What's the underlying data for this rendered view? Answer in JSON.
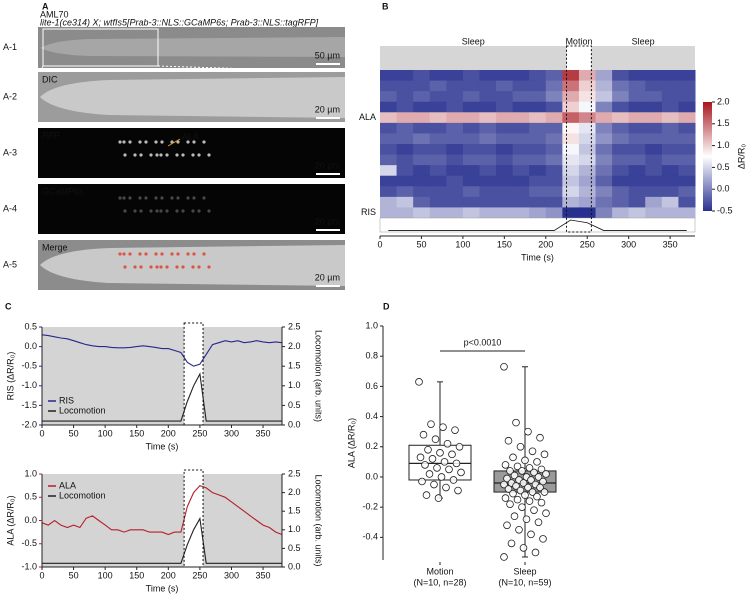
{
  "panel_labels": [
    "A",
    "B",
    "C",
    "D"
  ],
  "panel_a": {
    "strain": "AML70",
    "genotype": "lite-1(ce314) X; wtfIs5[Prab-3::NLS::GCaMP6s; Prab-3::NLS::tagRFP]",
    "rows": [
      {
        "id": "A-1",
        "scale_bar": "50 µm"
      },
      {
        "id": "A-2",
        "caption": "DIC",
        "scale_bar": "20 µm"
      },
      {
        "id": "A-3",
        "caption": "RFP",
        "scale_bar": "20 µm",
        "annotation": "ALA"
      },
      {
        "id": "A-4",
        "caption": "GCaMP6s",
        "scale_bar": "20 µm"
      },
      {
        "id": "A-5",
        "caption": "Merge",
        "scale_bar": "20 µm"
      }
    ]
  },
  "chart_data": [
    {
      "type": "heatmap",
      "state_labels": [
        "Sleep",
        "Motion",
        "Sleep"
      ],
      "motion_window": [
        225,
        255
      ],
      "bins": [
        0,
        20,
        40,
        60,
        80,
        100,
        120,
        140,
        160,
        180,
        200,
        220,
        240,
        260,
        280,
        300,
        320,
        340,
        360,
        380
      ],
      "rows": [
        {
          "name": null,
          "values": [
            -0.4,
            -0.4,
            -0.3,
            -0.4,
            -0.4,
            -0.3,
            -0.4,
            -0.4,
            -0.4,
            -0.3,
            -0.2,
            1.8,
            1.2,
            0.2,
            -0.3,
            -0.4,
            -0.4,
            -0.4,
            -0.4
          ]
        },
        {
          "name": null,
          "values": [
            -0.3,
            -0.3,
            -0.3,
            -0.2,
            -0.3,
            -0.3,
            -0.3,
            -0.2,
            -0.3,
            -0.3,
            -0.1,
            1.5,
            1.0,
            0.3,
            -0.1,
            -0.2,
            -0.3,
            -0.3,
            -0.3
          ]
        },
        {
          "name": null,
          "values": [
            -0.2,
            -0.3,
            -0.2,
            -0.3,
            -0.3,
            -0.2,
            -0.3,
            -0.3,
            -0.2,
            -0.2,
            0.0,
            1.2,
            0.9,
            0.4,
            0.0,
            -0.2,
            -0.2,
            -0.3,
            -0.3
          ]
        },
        {
          "name": null,
          "values": [
            -0.4,
            -0.3,
            -0.4,
            -0.4,
            -0.3,
            -0.4,
            -0.4,
            -0.3,
            -0.4,
            -0.4,
            -0.3,
            1.0,
            0.7,
            0.0,
            -0.3,
            -0.4,
            -0.4,
            -0.3,
            -0.4
          ]
        },
        {
          "name": "ALA",
          "values": [
            1.1,
            1.2,
            1.2,
            1.1,
            1.2,
            1.2,
            1.1,
            1.2,
            1.2,
            1.1,
            1.2,
            1.6,
            1.4,
            1.2,
            1.1,
            1.2,
            1.2,
            1.1,
            1.2
          ]
        },
        {
          "name": null,
          "values": [
            -0.3,
            -0.2,
            -0.3,
            -0.3,
            -0.2,
            -0.3,
            -0.2,
            -0.3,
            -0.3,
            -0.2,
            -0.2,
            0.8,
            0.6,
            0.0,
            -0.2,
            -0.3,
            -0.3,
            -0.2,
            -0.3
          ]
        },
        {
          "name": null,
          "values": [
            -0.2,
            -0.2,
            -0.1,
            -0.2,
            -0.2,
            -0.2,
            -0.1,
            -0.2,
            -0.2,
            -0.2,
            -0.1,
            0.9,
            0.5,
            0.1,
            -0.1,
            -0.2,
            -0.2,
            -0.2,
            -0.2
          ]
        },
        {
          "name": null,
          "values": [
            -0.3,
            -0.4,
            -0.3,
            -0.3,
            -0.4,
            -0.3,
            -0.3,
            -0.4,
            -0.3,
            -0.3,
            -0.2,
            0.7,
            0.4,
            -0.1,
            -0.3,
            -0.3,
            -0.4,
            -0.3,
            -0.3
          ]
        },
        {
          "name": null,
          "values": [
            -0.2,
            -0.3,
            -0.2,
            -0.2,
            -0.3,
            -0.2,
            -0.2,
            -0.3,
            -0.2,
            -0.2,
            -0.1,
            0.6,
            0.5,
            0.0,
            -0.2,
            -0.2,
            -0.3,
            -0.2,
            -0.2
          ]
        },
        {
          "name": null,
          "values": [
            0.5,
            -0.3,
            -0.4,
            -0.3,
            -0.4,
            -0.4,
            -0.3,
            -0.4,
            -0.3,
            -0.4,
            -0.3,
            0.5,
            0.3,
            -0.1,
            -0.3,
            -0.4,
            -0.3,
            -0.4,
            -0.3
          ]
        },
        {
          "name": null,
          "values": [
            -0.4,
            -0.4,
            -0.4,
            -0.4,
            -0.3,
            -0.4,
            -0.4,
            -0.4,
            -0.4,
            -0.3,
            -0.3,
            0.4,
            0.2,
            -0.2,
            -0.4,
            -0.4,
            -0.4,
            -0.4,
            -0.4
          ]
        },
        {
          "name": null,
          "values": [
            -0.3,
            -0.2,
            -0.3,
            -0.3,
            -0.3,
            -0.2,
            -0.3,
            -0.3,
            -0.3,
            -0.2,
            -0.2,
            0.5,
            0.3,
            0.0,
            -0.2,
            -0.3,
            -0.3,
            -0.3,
            -0.2
          ]
        },
        {
          "name": null,
          "values": [
            0.3,
            0.4,
            -0.2,
            -0.3,
            -0.3,
            -0.3,
            -0.3,
            -0.3,
            -0.3,
            -0.3,
            -0.3,
            0.3,
            0.2,
            -0.1,
            -0.2,
            -0.3,
            0.2,
            0.4,
            -0.3
          ]
        },
        {
          "name": "RIS",
          "values": [
            0.3,
            0.3,
            0.4,
            0.3,
            0.3,
            0.4,
            0.3,
            0.3,
            0.3,
            0.2,
            0.1,
            -0.5,
            -0.5,
            0.0,
            0.3,
            0.4,
            0.3,
            0.3,
            0.3
          ]
        }
      ],
      "locomotion": [
        0.05,
        0.05,
        0.05,
        0.05,
        0.05,
        0.05,
        0.05,
        0.05,
        0.05,
        0.05,
        0.05,
        1.2,
        0.9,
        0.05,
        0.05,
        0.05,
        0.05,
        0.05,
        0.05
      ],
      "xlim": [
        0,
        380
      ],
      "xticks": [
        0,
        50,
        100,
        150,
        200,
        250,
        300,
        350
      ],
      "xlabel": "Time (s)",
      "clim": [
        -0.5,
        2.0
      ],
      "cticks": [
        -0.5,
        {
          "value": 0,
          "label": "0.0"
        },
        0.5,
        {
          "value": 1,
          "label": "1.0"
        },
        1.5,
        {
          "value": 2,
          "label": "2.0"
        }
      ],
      "colorbar_label": "ΔR/R₀",
      "colormap": [
        "#28308f",
        "#ffffff",
        "#a8161f"
      ]
    },
    {
      "type": "line",
      "x": [
        0,
        10,
        20,
        30,
        40,
        50,
        60,
        70,
        80,
        90,
        100,
        110,
        120,
        130,
        140,
        150,
        160,
        170,
        180,
        190,
        200,
        210,
        220,
        230,
        240,
        250,
        260,
        270,
        280,
        290,
        300,
        310,
        320,
        330,
        340,
        350,
        360,
        370,
        380
      ],
      "series": [
        {
          "name": "RIS",
          "color": "#27278c",
          "values": [
            0.3,
            0.28,
            0.25,
            0.22,
            0.2,
            0.15,
            0.1,
            0.05,
            0.02,
            0.0,
            0.0,
            -0.02,
            -0.03,
            -0.03,
            -0.02,
            0.0,
            0.02,
            0.0,
            -0.02,
            -0.05,
            -0.05,
            -0.1,
            -0.15,
            -0.4,
            -0.5,
            -0.45,
            -0.2,
            0.05,
            0.1,
            0.15,
            0.12,
            0.15,
            0.1,
            0.12,
            0.15,
            0.12,
            0.1,
            0.12,
            0.1
          ]
        },
        {
          "name": "Locomotion",
          "color": "#222222",
          "axis": "y2",
          "values": [
            0.1,
            0.1,
            0.1,
            0.1,
            0.1,
            0.1,
            0.1,
            0.1,
            0.1,
            0.1,
            0.1,
            0.1,
            0.1,
            0.1,
            0.1,
            0.1,
            0.1,
            0.1,
            0.1,
            0.1,
            0.1,
            0.1,
            0.1,
            0.6,
            1.0,
            1.3,
            0.1,
            0.1,
            0.1,
            0.1,
            0.1,
            0.1,
            0.1,
            0.1,
            0.1,
            0.1,
            0.1,
            0.1,
            0.1
          ]
        }
      ],
      "motion_window": [
        225,
        255
      ],
      "background": "#d4d4d4",
      "xlim": [
        0,
        380
      ],
      "xticks": [
        0,
        50,
        100,
        150,
        200,
        250,
        300,
        350
      ],
      "xlabel": "Time (s)",
      "ylim": [
        -2,
        0.5
      ],
      "yticks": [
        {
          "value": -2,
          "label": "-2.0"
        },
        -1.5,
        {
          "value": -1,
          "label": "-1.0"
        },
        -0.5,
        {
          "value": 0,
          "label": "0.0"
        },
        0.5
      ],
      "ylabel": "RIS (ΔR/R₀)",
      "y2lim": [
        0,
        2.5
      ],
      "y2ticks": [
        {
          "value": 0,
          "label": "0.0"
        },
        0.5,
        {
          "value": 1,
          "label": "1.0"
        },
        1.5,
        {
          "value": 2,
          "label": "2.0"
        },
        2.5
      ],
      "y2label": "Locomotion (arb. units)",
      "legend": "lower left"
    },
    {
      "type": "line",
      "x": [
        0,
        10,
        20,
        30,
        40,
        50,
        60,
        70,
        80,
        90,
        100,
        110,
        120,
        130,
        140,
        150,
        160,
        170,
        180,
        190,
        200,
        210,
        220,
        230,
        240,
        250,
        260,
        270,
        280,
        290,
        300,
        310,
        320,
        330,
        340,
        350,
        360,
        370,
        380
      ],
      "series": [
        {
          "name": "ALA",
          "color": "#b5202a",
          "values": [
            -0.05,
            -0.1,
            0.0,
            -0.1,
            -0.15,
            -0.1,
            -0.15,
            0.05,
            0.1,
            0.0,
            -0.1,
            -0.2,
            -0.2,
            -0.25,
            -0.2,
            -0.2,
            -0.2,
            -0.25,
            -0.25,
            -0.25,
            -0.3,
            -0.25,
            -0.25,
            0.3,
            0.6,
            0.75,
            0.7,
            0.6,
            0.55,
            0.5,
            0.4,
            0.3,
            0.2,
            0.1,
            0.0,
            -0.1,
            -0.15,
            -0.25,
            -0.3
          ]
        },
        {
          "name": "Locomotion",
          "color": "#222222",
          "axis": "y2",
          "values": [
            0.1,
            0.1,
            0.1,
            0.1,
            0.1,
            0.1,
            0.1,
            0.1,
            0.1,
            0.1,
            0.1,
            0.1,
            0.1,
            0.1,
            0.1,
            0.1,
            0.1,
            0.1,
            0.1,
            0.1,
            0.1,
            0.1,
            0.1,
            0.6,
            1.0,
            1.3,
            0.1,
            0.1,
            0.1,
            0.1,
            0.1,
            0.1,
            0.1,
            0.1,
            0.1,
            0.1,
            0.1,
            0.1,
            0.1
          ]
        }
      ],
      "motion_window": [
        225,
        255
      ],
      "background": "#d4d4d4",
      "xlim": [
        0,
        380
      ],
      "xticks": [
        0,
        50,
        100,
        150,
        200,
        250,
        300,
        350
      ],
      "xlabel": "Time (s)",
      "ylim": [
        -1,
        1
      ],
      "yticks": [
        {
          "value": -1,
          "label": "-1.0"
        },
        -0.5,
        {
          "value": 0,
          "label": "0.0"
        },
        0.5,
        {
          "value": 1,
          "label": "1.0"
        }
      ],
      "ylabel": "ALA (ΔR/R₀)",
      "y2lim": [
        0,
        2.5
      ],
      "y2ticks": [
        {
          "value": 0,
          "label": "0.0"
        },
        0.5,
        {
          "value": 1,
          "label": "1.0"
        },
        1.5,
        {
          "value": 2,
          "label": "2.0"
        },
        2.5
      ],
      "y2label": "Locomotion (arb. units)",
      "legend": "upper left"
    },
    {
      "type": "box",
      "categories": [
        "Motion",
        "Sleep"
      ],
      "category_notes": [
        "(N=10, n=28)",
        "(N=10, n=59)"
      ],
      "boxes": [
        {
          "min": -0.14,
          "q1": -0.02,
          "median": 0.09,
          "q3": 0.21,
          "max": 0.63,
          "color": "#ffffff"
        },
        {
          "min": -0.53,
          "q1": -0.1,
          "median": -0.04,
          "q3": 0.04,
          "max": 0.73,
          "color": "#9a9a9a"
        }
      ],
      "points": [
        [
          0.63,
          0.35,
          0.33,
          0.31,
          0.28,
          0.25,
          0.22,
          0.2,
          0.18,
          0.16,
          0.15,
          0.13,
          0.12,
          0.1,
          0.09,
          0.08,
          0.06,
          0.05,
          0.03,
          0.02,
          0.0,
          -0.02,
          -0.03,
          -0.05,
          -0.07,
          -0.09,
          -0.12,
          -0.14
        ],
        [
          0.73,
          0.36,
          0.3,
          0.26,
          0.24,
          0.2,
          0.17,
          0.15,
          0.13,
          0.11,
          0.1,
          0.08,
          0.07,
          0.06,
          0.05,
          0.04,
          0.04,
          0.03,
          0.02,
          0.01,
          0.0,
          0.0,
          -0.01,
          -0.02,
          -0.02,
          -0.03,
          -0.04,
          -0.04,
          -0.05,
          -0.05,
          -0.06,
          -0.07,
          -0.07,
          -0.08,
          -0.09,
          -0.1,
          -0.1,
          -0.11,
          -0.12,
          -0.13,
          -0.14,
          -0.15,
          -0.16,
          -0.17,
          -0.18,
          -0.2,
          -0.22,
          -0.24,
          -0.26,
          -0.28,
          -0.3,
          -0.32,
          -0.35,
          -0.38,
          -0.41,
          -0.44,
          -0.47,
          -0.5,
          -0.53
        ]
      ],
      "annotation": "p<0.0010",
      "ylim": [
        -0.55,
        1
      ],
      "yticks": [
        -0.4,
        -0.2,
        {
          "value": 0,
          "label": "0.0"
        },
        0.2,
        0.4,
        0.6,
        0.8,
        {
          "value": 1,
          "label": "1.0"
        }
      ],
      "ylabel": "ALA (ΔR/R₀)"
    }
  ]
}
